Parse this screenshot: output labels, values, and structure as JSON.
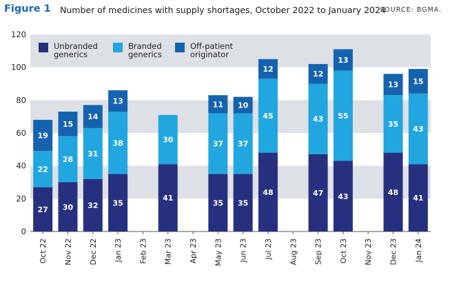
{
  "figure": {
    "label": "Figure 1",
    "title": "Number of medicines with supply shortages, October 2022 to January 2024",
    "source": "SOURCE: BGMA."
  },
  "colors": {
    "unbranded": "#26307e",
    "branded": "#22a6e0",
    "offpatient": "#1563ae",
    "band": "#dde1e6",
    "grid_line": "#bfc4ca"
  },
  "chart_data": {
    "type": "bar",
    "stacked": true,
    "title": "Number of medicines with supply shortages, October 2022 to January 2024",
    "xlabel": "",
    "ylabel": "",
    "ylim": [
      0,
      120
    ],
    "yticks": [
      0,
      20,
      40,
      60,
      80,
      100,
      120
    ],
    "grid": "alternating horizontal bands",
    "legend_position": "top-left",
    "categories": [
      "Oct 22",
      "Nov 22",
      "Dec 22",
      "Jan 23",
      "Feb 23",
      "Mar 23",
      "Apr 23",
      "May 23",
      "Jun 23",
      "Jul 23",
      "Aug 23",
      "Sep 23",
      "Oct 23",
      "Nov 23",
      "Dec 23",
      "Jan 24"
    ],
    "series": [
      {
        "name": "Unbranded generics",
        "values": [
          27,
          30,
          32,
          35,
          null,
          41,
          null,
          35,
          35,
          48,
          null,
          47,
          43,
          null,
          48,
          41
        ]
      },
      {
        "name": "Branded generics",
        "values": [
          22,
          28,
          31,
          38,
          null,
          30,
          null,
          37,
          37,
          45,
          null,
          43,
          55,
          null,
          35,
          43
        ]
      },
      {
        "name": "Off-patient originator",
        "values": [
          19,
          15,
          14,
          13,
          null,
          null,
          null,
          11,
          10,
          12,
          null,
          12,
          13,
          null,
          13,
          15
        ]
      }
    ],
    "legend": [
      {
        "line1": "Unbranded",
        "line2": "generics"
      },
      {
        "line1": "Branded",
        "line2": "generics"
      },
      {
        "line1": "Off-patient",
        "line2": "originator"
      }
    ]
  }
}
